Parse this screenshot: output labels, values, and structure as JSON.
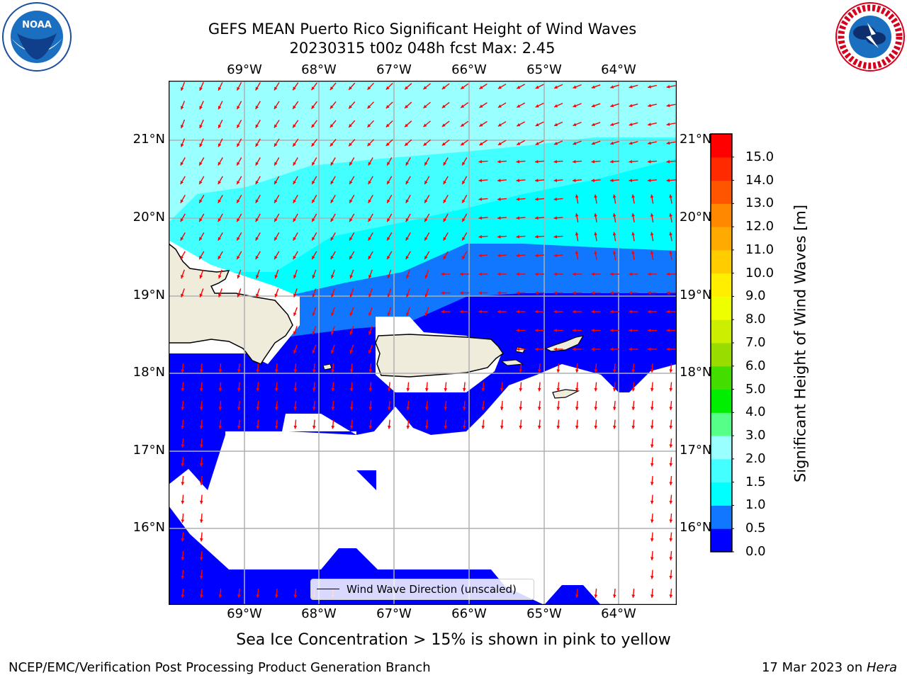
{
  "header": {
    "title_line1": "GEFS MEAN Puerto Rico Significant Height of Wind Waves",
    "title_line2": "20230315 t00z 048h fcst   Max: 2.45"
  },
  "logos": {
    "left": "NOAA",
    "right": "NATIONAL WEATHER SERVICE"
  },
  "map": {
    "lon_labels": [
      "69°W",
      "68°W",
      "67°W",
      "66°W",
      "65°W",
      "64°W"
    ],
    "lat_labels": [
      "21°N",
      "20°N",
      "19°N",
      "18°N",
      "17°N",
      "16°N"
    ],
    "legend_label": "Wind Wave Direction (unscaled)",
    "arrow_color": "#ff0000",
    "land_color": "#efecdc"
  },
  "colorbar": {
    "label": "Significant Height of Wind Waves [m]",
    "ticks": [
      "0.0",
      "0.5",
      "1.0",
      "1.5",
      "2.0",
      "3.0",
      "4.0",
      "5.0",
      "6.0",
      "7.0",
      "8.0",
      "9.0",
      "10.0",
      "11.0",
      "12.0",
      "13.0",
      "14.0",
      "15.0"
    ],
    "colors": [
      "#0000ff",
      "#1177ff",
      "#00ffff",
      "#44ffff",
      "#99ffff",
      "#55ff88",
      "#00ee00",
      "#44dd00",
      "#99dd00",
      "#ccee00",
      "#eeff00",
      "#ffee00",
      "#ffcc00",
      "#ffaa00",
      "#ff8800",
      "#ff5500",
      "#ff2a00",
      "#ff0000"
    ]
  },
  "notes": {
    "ice": "Sea Ice Concentration > 15% is shown in pink to yellow",
    "footer_left": "NCEP/EMC/Verification Post Processing Product Generation Branch",
    "footer_right_prefix": "17 Mar 2023 on ",
    "footer_right_host": "Hera"
  }
}
